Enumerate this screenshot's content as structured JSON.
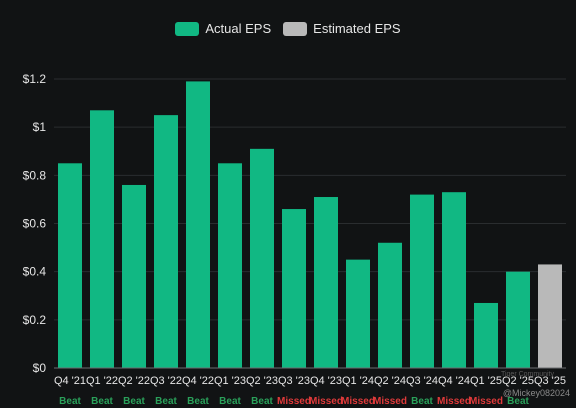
{
  "legend": {
    "actual_label": "Actual EPS",
    "estimated_label": "Estimated EPS"
  },
  "colors": {
    "actual": "#11b883",
    "estimated": "#b9b9b9",
    "beat": "#2aa15a",
    "missed": "#e03a3a",
    "background": "#111314",
    "grid": "#2a2d2f",
    "text": "#e6e6e6"
  },
  "watermark": {
    "text": "@Mickey082024",
    "logo_text": "Tiger Community"
  },
  "chart_data": {
    "type": "bar",
    "categories": [
      "Q4 '21",
      "Q1 '22",
      "Q2 '22",
      "Q3 '22",
      "Q4 '22",
      "Q1 '23",
      "Q2 '23",
      "Q3 '23",
      "Q4 '23",
      "Q1 '24",
      "Q2 '24",
      "Q3 '24",
      "Q4 '24",
      "Q1 '25",
      "Q2 '25",
      "Q3 '25"
    ],
    "series": [
      {
        "name": "Actual EPS",
        "values": [
          0.85,
          1.07,
          0.76,
          1.05,
          1.19,
          0.85,
          0.91,
          0.66,
          0.71,
          0.45,
          0.52,
          0.72,
          0.73,
          0.27,
          0.4,
          null
        ]
      },
      {
        "name": "Estimated EPS",
        "values": [
          null,
          null,
          null,
          null,
          null,
          null,
          null,
          null,
          null,
          null,
          null,
          null,
          null,
          null,
          null,
          0.43
        ]
      }
    ],
    "results": [
      "Beat",
      "Beat",
      "Beat",
      "Beat",
      "Beat",
      "Beat",
      "Beat",
      "Missed",
      "Missed",
      "Missed",
      "Missed",
      "Beat",
      "Missed",
      "Missed",
      "Beat",
      ""
    ],
    "y_ticks": [
      "$0",
      "$0.2",
      "$0.4",
      "$0.6",
      "$0.8",
      "$1",
      "$1.2"
    ],
    "ylim": [
      0,
      1.3
    ],
    "grid": true,
    "legend_position": "top-center"
  }
}
